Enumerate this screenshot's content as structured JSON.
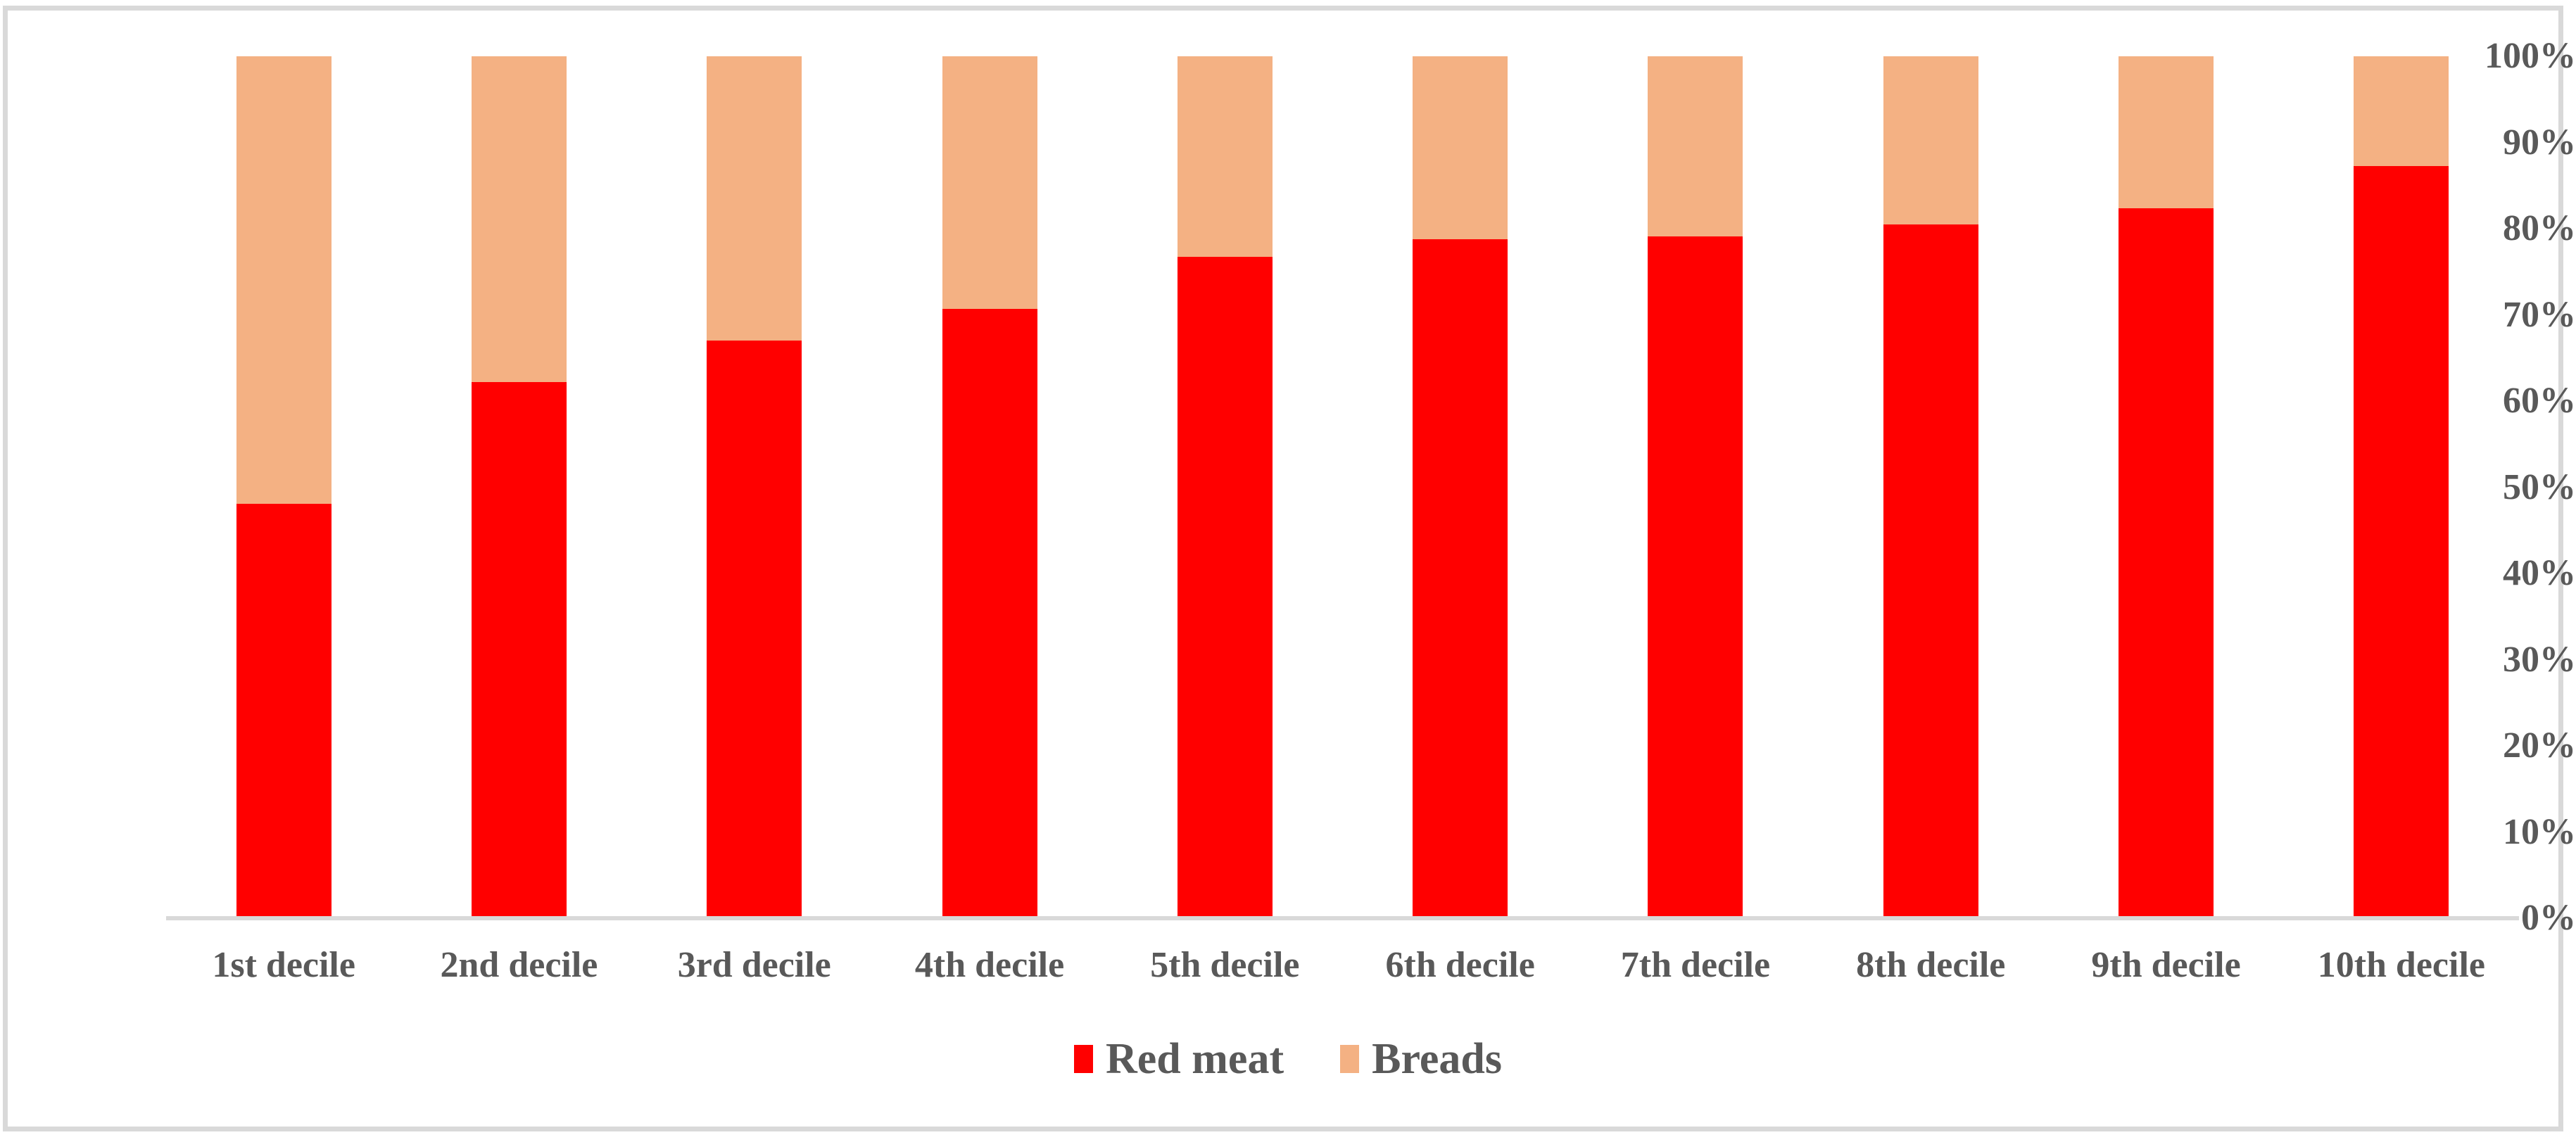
{
  "chart_data": {
    "type": "bar",
    "subtype": "stacked-100-percent",
    "title": "",
    "xlabel": "",
    "ylabel": "",
    "categories": [
      "1st decile",
      "2nd decile",
      "3rd decile",
      "4th decile",
      "5th decile",
      "6th decile",
      "7th decile",
      "8th decile",
      "9th decile",
      "10th decile"
    ],
    "series": [
      {
        "name": "Red meat",
        "color": "#FF0000",
        "values": [
          48.1,
          62.2,
          67.0,
          70.7,
          76.7,
          78.8,
          79.1,
          80.5,
          82.4,
          87.3
        ]
      },
      {
        "name": "Breads",
        "color": "#F4B183",
        "values": [
          51.9,
          37.8,
          33.0,
          29.3,
          23.3,
          21.2,
          20.9,
          19.5,
          17.6,
          12.7
        ]
      }
    ],
    "y_axis": {
      "min": 0,
      "max": 100,
      "tick_step": 10,
      "tick_labels_top_to_bottom": [
        "100%",
        "90%",
        "80%",
        "70%",
        "60%",
        "50%",
        "40%",
        "30%",
        "20%",
        "10%",
        "0%"
      ]
    },
    "legend": {
      "position": "bottom-center",
      "entries": [
        "Red meat",
        "Breads"
      ]
    },
    "grid": false
  },
  "colors": {
    "axis_line": "#d9d9d9",
    "frame_border": "#d9d9d9",
    "label_text": "#595959"
  }
}
